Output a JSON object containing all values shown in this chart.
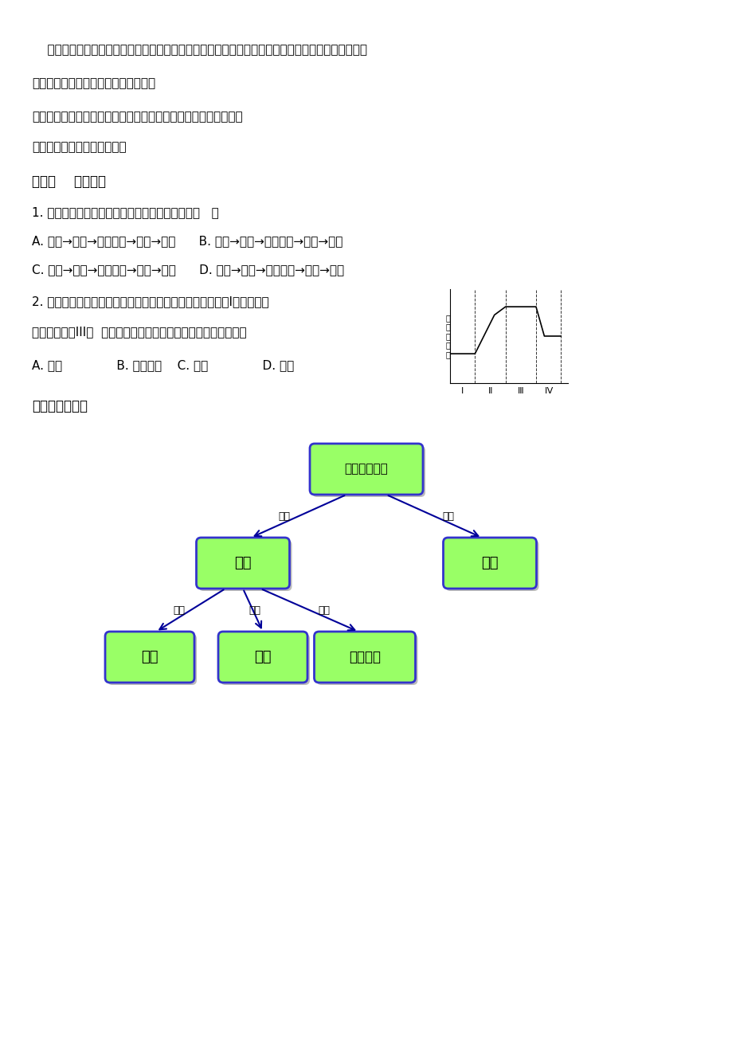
{
  "bg_color": "#ffffff",
  "text_color": "#000000",
  "para1": "    心脏收缩，左心室射入主动脉，主动脉壁先向外扩张，然后回缩，这种一张一缩的捯动，像波浪一样",
  "para2": "沿动脉壁向远处传播，这就形成脉搁。",
  "para3": "老师引导学生提出问题，如：不同的运动量对脉搁的影响相同吗？",
  "para4": "然后让学生做假设设计实验。",
  "section_title": "（三）    课堂练习",
  "q1": "1. 在体循环和肺循环中，血液流动的正确方向是（   ）",
  "q1a": "A. 心室→动脉→毛细血管→静脉→心房      B. 心室→静脉→毛细血管→动脉→心房",
  "q1b": "C. 心房→动脉→毛细血管→静脉→心室      D. 心房→静脉→毛细血管→动脉→心室",
  "q2": "2. 右图为人体血液循环过程中某物质含量的变化情况，如果I代表肺泡间",
  "q2b": "的毛细血管，III代  表组织细胞间的毛细血管，则该物质最可能是",
  "q2c": "A. 氧气              B. 二氧化碳    C. 养料              D. 废物",
  "concept_title": "「本节概念图」",
  "box_fill": "#99ff66",
  "box_edge": "#3333cc",
  "arrow_color": "#000099",
  "node_root": "血液循环系统",
  "node_l2_left": "血管",
  "node_l2_right": "心脏",
  "node_l3_left": "动脉",
  "node_l3_mid": "静脉",
  "node_l3_right": "毛细血管",
  "label_baokuo": "包括"
}
